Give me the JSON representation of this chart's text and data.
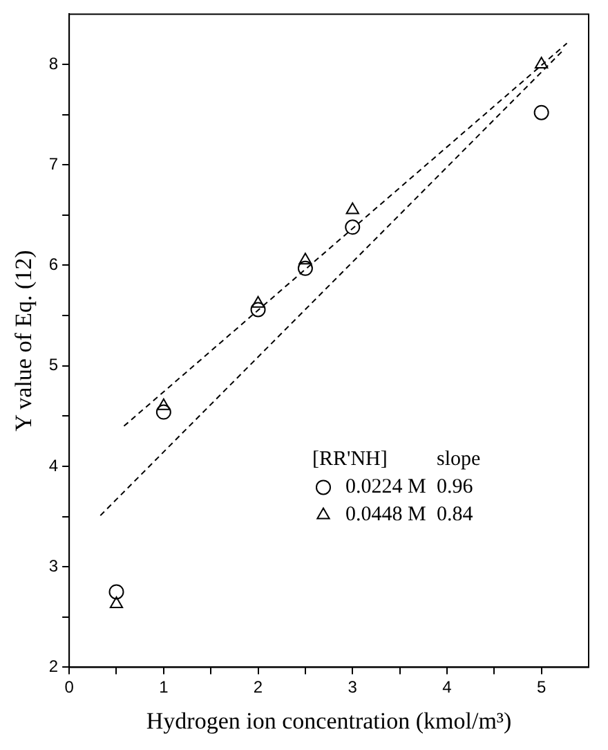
{
  "chart_data": {
    "type": "scatter",
    "xlabel": "Hydrogen ion concentration (kmol/m³)",
    "ylabel": "Y value of Eq. (12)",
    "legend_title": "[RR'NH]",
    "annotations": [
      "slope",
      "0.96",
      "0.84"
    ],
    "legend": "bottom right",
    "grid": false,
    "xlim": [
      0,
      5.5
    ],
    "xticks": [
      0,
      {
        "value": 0.5,
        "label": null
      },
      1,
      {
        "value": 1.5,
        "label": null
      },
      2,
      {
        "value": 2.5,
        "label": null
      },
      3,
      {
        "value": 3.5,
        "label": null
      },
      4,
      {
        "value": 4.5,
        "label": null
      },
      5
    ],
    "ylim": [
      2,
      8.5
    ],
    "yticks": [
      2,
      {
        "value": 2.5,
        "label": null
      },
      3,
      {
        "value": 3.5,
        "label": null
      },
      4,
      {
        "value": 4.5,
        "label": null
      },
      5,
      {
        "value": 5.5,
        "label": null
      },
      6,
      {
        "value": 6.5,
        "label": null
      },
      7,
      {
        "value": 7.5,
        "label": null
      },
      8
    ],
    "x": [
      0.5,
      1,
      2,
      2.5,
      3,
      5
    ],
    "series": [
      {
        "name": "0.0224 M",
        "color": "#000000",
        "marker": "circle",
        "values": [
          2.75,
          4.54,
          5.56,
          5.97,
          6.38,
          7.52
        ]
      },
      {
        "name": "0.0448 M",
        "color": "#000000",
        "marker": "triangle",
        "values": [
          2.63,
          4.6,
          5.62,
          6.05,
          6.55,
          8.0
        ]
      },
      {
        "type": "line",
        "color": "#000000",
        "marker": "none",
        "line_style": "dashed",
        "x": [
          0.33,
          5.23
        ],
        "values": [
          3.51,
          8.14
        ]
      },
      {
        "type": "line",
        "color": "#000000",
        "marker": "none",
        "line_style": "dashed",
        "x": [
          0.58,
          5.27
        ],
        "values": [
          4.4,
          8.21
        ]
      }
    ]
  }
}
